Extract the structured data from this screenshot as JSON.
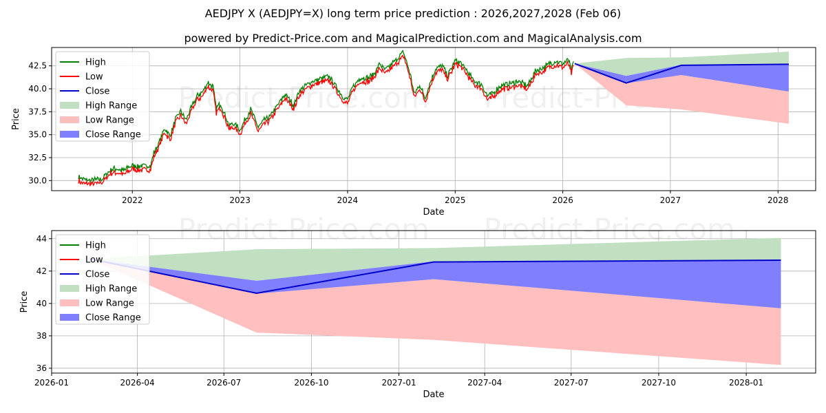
{
  "title": "AEDJPY X (AEDJPY=X) long term price prediction : 2026,2027,2028 (Feb 06)",
  "subtitle": "powered by Predict-Price.com and MagicalPrediction.com and MagicalAnalysis.com",
  "watermark": "Predict-Price.com",
  "colors": {
    "high": "#008000",
    "low": "#ff0000",
    "close": "#0000cc",
    "high_range": "#c1e0c1",
    "low_range": "#ffbfbf",
    "close_range": "#8080ff"
  },
  "chart_data": [
    {
      "type": "line",
      "name": "history-and-forecast",
      "xlabel": "Date",
      "ylabel": "Price",
      "xlim": [
        2021.25,
        2028.35
      ],
      "ylim": [
        28.9,
        44.5
      ],
      "x_ticks": [
        2022,
        2023,
        2024,
        2025,
        2026,
        2027,
        2028
      ],
      "x_tick_labels": [
        "2022",
        "2023",
        "2024",
        "2025",
        "2026",
        "2027",
        "2028"
      ],
      "y_ticks": [
        30.0,
        32.5,
        35.0,
        37.5,
        40.0,
        42.5
      ],
      "y_tick_labels": [
        "30.0",
        "32.5",
        "35.0",
        "37.5",
        "40.0",
        "42.5"
      ],
      "legend": [
        "High",
        "Low",
        "Close",
        "High Range",
        "Low Range",
        "Close Range"
      ],
      "legend_position": "top-left",
      "grid": true,
      "history_anchors": {
        "x": [
          2021.5,
          2021.55,
          2021.62,
          2021.72,
          2021.8,
          2021.85,
          2021.92,
          2022.0,
          2022.05,
          2022.1,
          2022.17,
          2022.2,
          2022.25,
          2022.3,
          2022.35,
          2022.4,
          2022.45,
          2022.5,
          2022.55,
          2022.6,
          2022.65,
          2022.7,
          2022.75,
          2022.78,
          2022.82,
          2022.86,
          2022.9,
          2022.95,
          2023.0,
          2023.05,
          2023.1,
          2023.17,
          2023.22,
          2023.28,
          2023.35,
          2023.42,
          2023.5,
          2023.55,
          2023.6,
          2023.67,
          2023.75,
          2023.83,
          2023.88,
          2023.95,
          2024.0,
          2024.05,
          2024.12,
          2024.2,
          2024.25,
          2024.3,
          2024.35,
          2024.45,
          2024.52,
          2024.55,
          2024.59,
          2024.62,
          2024.67,
          2024.72,
          2024.77,
          2024.82,
          2024.88,
          2024.93,
          2025.0,
          2025.05,
          2025.1,
          2025.17,
          2025.25,
          2025.3,
          2025.35,
          2025.42,
          2025.5,
          2025.58,
          2025.67,
          2025.75,
          2025.82,
          2025.88,
          2025.95,
          2026.0,
          2026.05,
          2026.08,
          2026.1
        ],
        "close": [
          30.2,
          29.9,
          29.8,
          30.0,
          31.0,
          31.1,
          30.9,
          31.5,
          31.3,
          31.4,
          31.4,
          32.8,
          34.0,
          35.5,
          34.6,
          36.5,
          37.3,
          36.4,
          37.8,
          39.0,
          39.4,
          40.5,
          40.0,
          37.6,
          38.2,
          37.0,
          35.8,
          36.0,
          35.3,
          36.5,
          37.5,
          35.6,
          36.3,
          36.8,
          38.0,
          39.2,
          38.0,
          39.5,
          40.0,
          40.6,
          40.9,
          41.1,
          40.3,
          39.0,
          38.6,
          40.0,
          41.0,
          41.0,
          41.5,
          42.5,
          41.8,
          42.9,
          43.8,
          42.7,
          41.0,
          39.2,
          40.2,
          38.8,
          40.5,
          42.0,
          42.3,
          41.2,
          42.9,
          42.6,
          41.9,
          40.7,
          40.2,
          39.0,
          39.3,
          40.1,
          40.3,
          40.6,
          40.1,
          41.8,
          42.1,
          42.6,
          42.8,
          42.5,
          43.0,
          41.8,
          42.7
        ]
      },
      "forecast": {
        "x": [
          2026.11,
          2026.59,
          2027.1,
          2028.1
        ],
        "close": [
          42.75,
          40.63,
          42.56,
          42.67
        ],
        "high_upper": [
          42.75,
          43.35,
          43.42,
          44.05
        ],
        "close_upper": [
          42.75,
          41.4,
          42.6,
          42.7
        ],
        "close_lower": [
          42.75,
          40.6,
          41.5,
          39.7
        ],
        "low_lower": [
          42.75,
          38.2,
          37.75,
          36.2
        ]
      }
    },
    {
      "type": "area",
      "name": "forecast-zoom",
      "xlabel": "Date",
      "ylabel": "Price",
      "xlim": [
        2026.0,
        2028.2
      ],
      "ylim": [
        35.7,
        44.5
      ],
      "x_ticks": [
        2026.0,
        2026.247,
        2026.496,
        2026.748,
        2027.0,
        2027.247,
        2027.496,
        2027.748,
        2028.0
      ],
      "x_tick_labels": [
        "2026-01",
        "2026-04",
        "2026-07",
        "2026-10",
        "2027-01",
        "2027-04",
        "2027-07",
        "2027-10",
        "2028-01"
      ],
      "y_ticks": [
        36,
        38,
        40,
        42,
        44
      ],
      "y_tick_labels": [
        "36",
        "38",
        "40",
        "42",
        "44"
      ],
      "legend": [
        "High",
        "Low",
        "Close",
        "High Range",
        "Low Range",
        "Close Range"
      ],
      "legend_position": "top-left",
      "grid": true
    }
  ]
}
